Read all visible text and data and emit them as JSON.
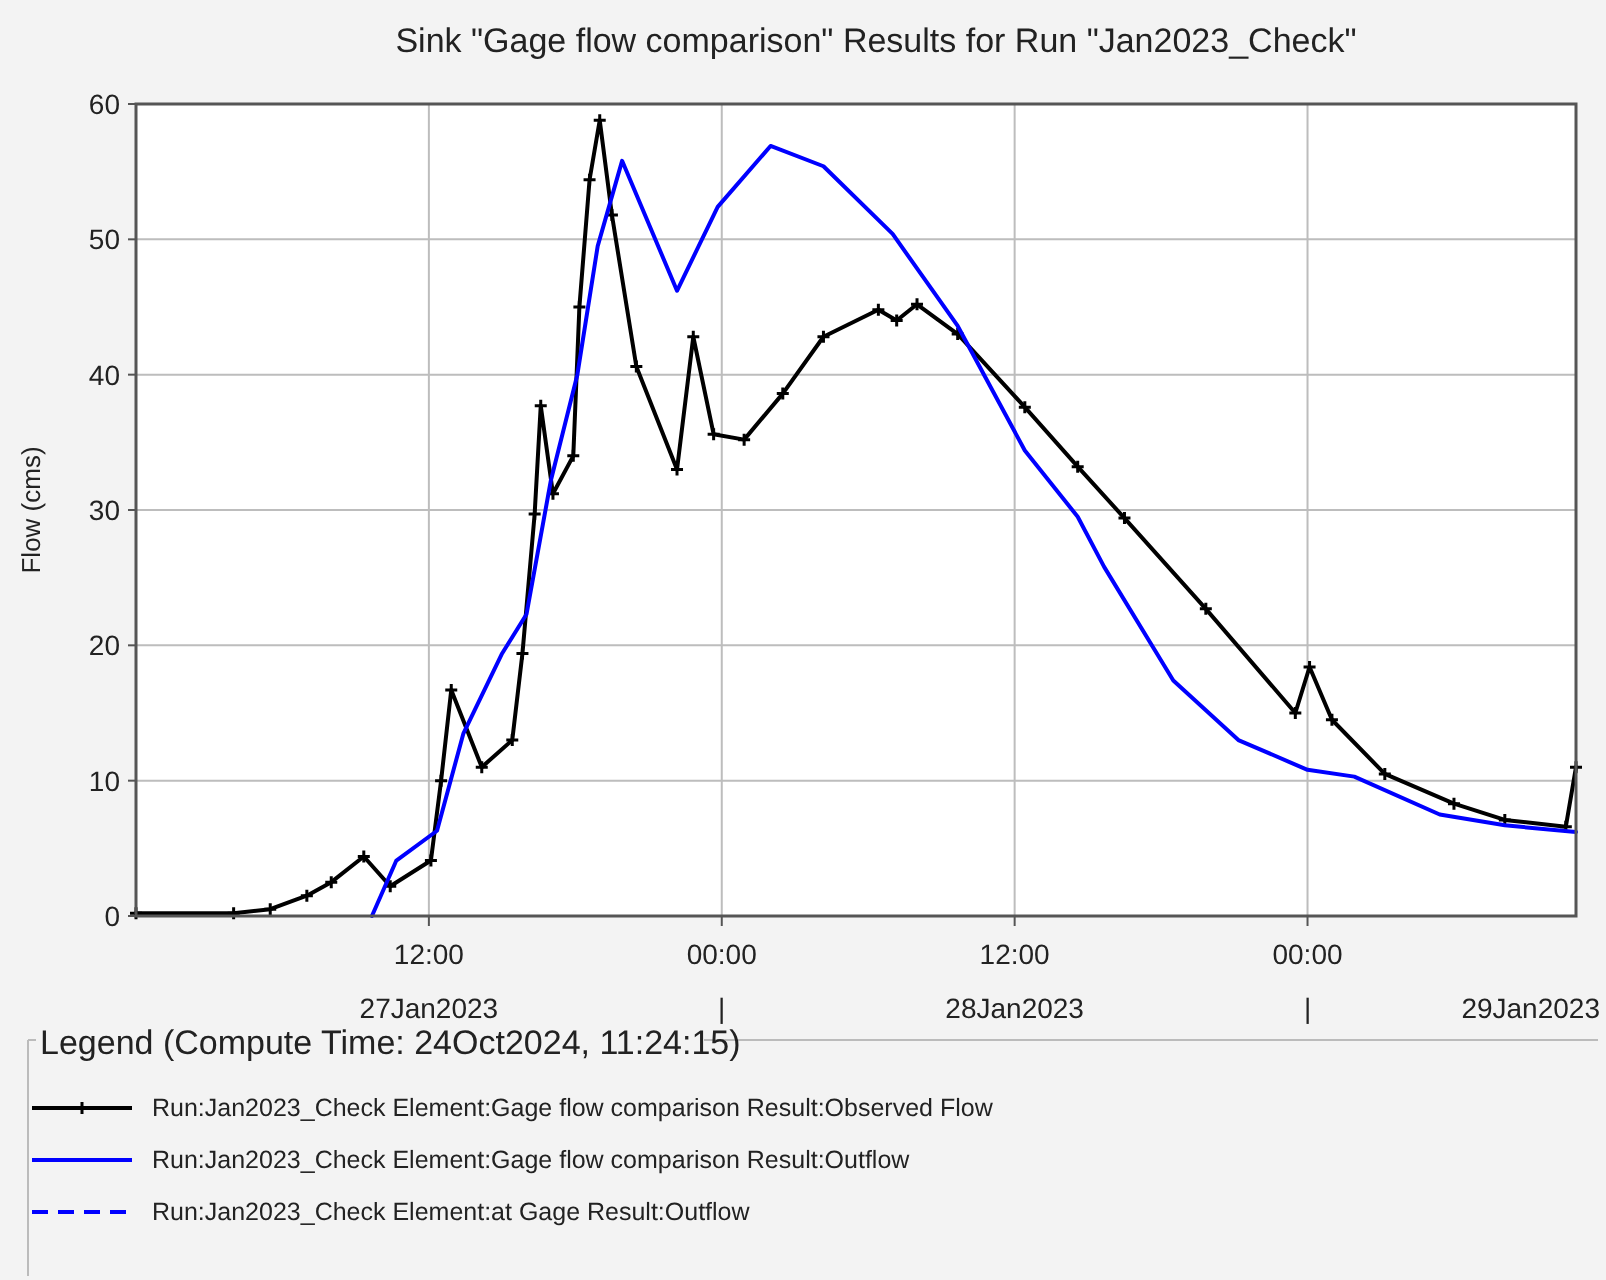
{
  "chart_data": {
    "type": "line",
    "title": "Sink \"Gage flow comparison\" Results for Run \"Jan2023_Check\"",
    "ylabel": "Flow (cms)",
    "legend_title": "Legend (Compute Time: 24Oct2024, 11:24:15)",
    "legend": "bottom",
    "grid": true,
    "xlim": [
      "2023-01-27T00:00",
      "2023-01-29T11:00"
    ],
    "xticks": [
      {
        "value": "2023-01-27T12:00",
        "label": "12:00\n27Jan2023"
      },
      {
        "value": "2023-01-28T00:00",
        "label": "00:00\n|"
      },
      {
        "value": "2023-01-28T12:00",
        "label": "12:00\n28Jan2023"
      },
      {
        "value": "2023-01-29T00:00",
        "label": "00:00\n|"
      }
    ],
    "annotations": [
      "29Jan2023"
    ],
    "ylim": [
      0,
      60
    ],
    "yticks": [
      0,
      10,
      20,
      30,
      40,
      50,
      60
    ],
    "series": [
      {
        "name": "Run:Jan2023_Check Element:Gage flow comparison Result:Observed Flow",
        "color": "#000000",
        "marker": "cross",
        "x": [
          "2023-01-27T00:00",
          "2023-01-27T04:00",
          "2023-01-27T05:30",
          "2023-01-27T07:00",
          "2023-01-27T08:00",
          "2023-01-27T09:20",
          "2023-01-27T10:25",
          "2023-01-27T12:05",
          "2023-01-27T12:30",
          "2023-01-27T12:55",
          "2023-01-27T14:10",
          "2023-01-27T15:25",
          "2023-01-27T15:50",
          "2023-01-27T16:20",
          "2023-01-27T16:35",
          "2023-01-27T17:05",
          "2023-01-27T17:55",
          "2023-01-27T18:10",
          "2023-01-27T18:35",
          "2023-01-27T19:00",
          "2023-01-27T19:30",
          "2023-01-27T20:30",
          "2023-01-27T22:10",
          "2023-01-27T22:50",
          "2023-01-27T23:40",
          "2023-01-28T00:55",
          "2023-01-28T02:30",
          "2023-01-28T04:10",
          "2023-01-28T06:25",
          "2023-01-28T07:10",
          "2023-01-28T08:00",
          "2023-01-28T09:40",
          "2023-01-28T12:25",
          "2023-01-28T14:35",
          "2023-01-28T16:30",
          "2023-01-28T19:50",
          "2023-01-28T23:30",
          "2023-01-29T00:05",
          "2023-01-29T01:00",
          "2023-01-29T03:10",
          "2023-01-29T06:00",
          "2023-01-29T08:05",
          "2023-01-29T10:35",
          "2023-01-29T11:00"
        ],
        "values": [
          0.2,
          0.2,
          0.5,
          1.5,
          2.5,
          4.4,
          2.2,
          4.1,
          10,
          16.7,
          11,
          13,
          19.4,
          29.7,
          37.7,
          31.2,
          34,
          45,
          54.4,
          58.8,
          51.8,
          40.6,
          33,
          42.8,
          35.6,
          35.2,
          38.6,
          42.8,
          44.8,
          44,
          45.2,
          43,
          37.6,
          33.2,
          29.4,
          22.7,
          15,
          18.4,
          14.5,
          10.5,
          8.3,
          7.1,
          6.6,
          11
        ]
      },
      {
        "name": "Run:Jan2023_Check Element:Gage flow comparison Result:Outflow",
        "color": "#0000ff",
        "marker": "none",
        "x": [
          "2023-01-27T09:40",
          "2023-01-27T10:40",
          "2023-01-27T12:20",
          "2023-01-27T13:25",
          "2023-01-27T15:00",
          "2023-01-27T16:00",
          "2023-01-27T17:00",
          "2023-01-27T18:05",
          "2023-01-27T18:55",
          "2023-01-27T19:55",
          "2023-01-27T22:10",
          "2023-01-27T23:50",
          "2023-01-28T02:00",
          "2023-01-28T04:10",
          "2023-01-28T07:00",
          "2023-01-28T09:40",
          "2023-01-28T12:25",
          "2023-01-28T14:35",
          "2023-01-28T15:40",
          "2023-01-28T18:30",
          "2023-01-28T21:10",
          "2023-01-29T00:00",
          "2023-01-29T01:55",
          "2023-01-29T05:25",
          "2023-01-29T08:05",
          "2023-01-29T11:00"
        ],
        "values": [
          0,
          4.1,
          6.3,
          13.5,
          19.4,
          22.3,
          32.2,
          40,
          49.5,
          55.8,
          46.2,
          52.4,
          56.9,
          55.4,
          50.4,
          43.6,
          34.4,
          29.5,
          25.8,
          17.4,
          13,
          10.8,
          10.3,
          7.5,
          6.7,
          6.2
        ]
      },
      {
        "name": "Run:Jan2023_Check Element:at Gage Result:Outflow",
        "color": "#0000ff",
        "marker": "none",
        "line_style": "dashed"
      }
    ]
  }
}
